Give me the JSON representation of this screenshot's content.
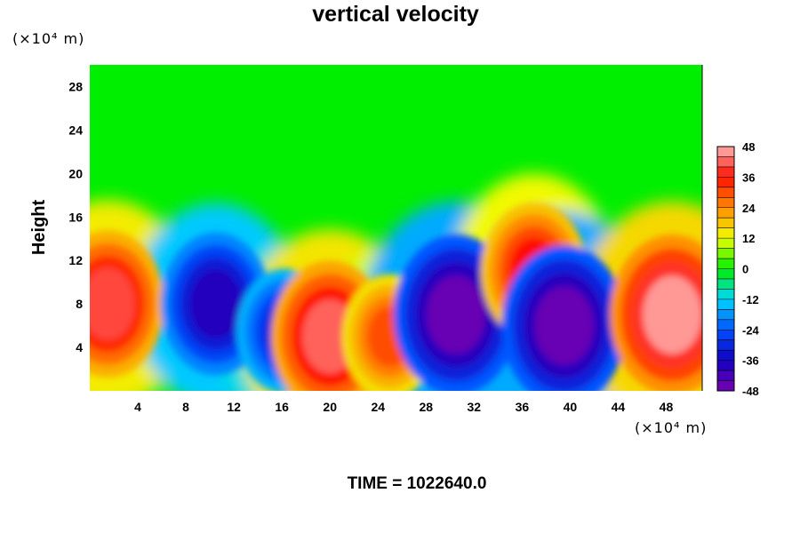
{
  "chart_data": {
    "type": "heatmap",
    "title": "vertical velocity",
    "ylabel": "Height",
    "x_unit": "(×10⁴ m)",
    "y_unit": "(×10⁴ m)",
    "footer": "TIME = 1022640.0",
    "xlim": [
      0,
      51
    ],
    "ylim": [
      0,
      30
    ],
    "x_ticks": [
      "4",
      "8",
      "12",
      "16",
      "20",
      "24",
      "28",
      "32",
      "36",
      "40",
      "44",
      "48"
    ],
    "y_ticks": [
      "4",
      "8",
      "12",
      "16",
      "20",
      "24",
      "28"
    ],
    "colorbar": {
      "ticks": [
        "48",
        "36",
        "24",
        "12",
        "0",
        "-12",
        "-24",
        "-36",
        "-48"
      ],
      "range": [
        -48,
        48
      ],
      "interval": 4
    },
    "features": [
      {
        "x": 1.5,
        "y": 8,
        "value": 40
      },
      {
        "x": 10.5,
        "y": 8,
        "value": -38
      },
      {
        "x": 16.2,
        "y": 5.5,
        "value": -30
      },
      {
        "x": 20,
        "y": 5,
        "value": 42
      },
      {
        "x": 25,
        "y": 5,
        "value": 30
      },
      {
        "x": 30.5,
        "y": 7,
        "value": -46
      },
      {
        "x": 37,
        "y": 11,
        "value": 36
      },
      {
        "x": 39.5,
        "y": 6,
        "value": -46
      },
      {
        "x": 48.5,
        "y": 7,
        "value": 46
      }
    ]
  },
  "colors": {
    "background": "#00ee00",
    "scale": [
      "#7a00b0",
      "#1000c0",
      "#0050ff",
      "#00d8ff",
      "#00ee00",
      "#f0ff00",
      "#ff8c00",
      "#ff1000",
      "#ffb4b4"
    ]
  }
}
